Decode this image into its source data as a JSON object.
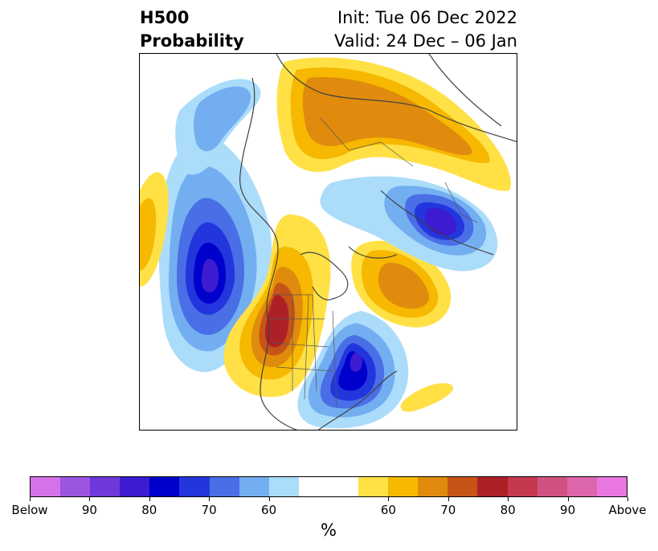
{
  "header": {
    "title_line1": "H500",
    "title_line2": "Probability",
    "init_text": "Init: Tue 06 Dec 2022",
    "valid_text": "Valid: 24 Dec – 06 Jan"
  },
  "colorbar": {
    "unit": "%",
    "colors": [
      "#d572e8",
      "#9c55e1",
      "#6e38da",
      "#3d1bd1",
      "#0000cc",
      "#2335dc",
      "#4a6ee6",
      "#73aef1",
      "#abdcfa",
      "#ffffff",
      "#ffffff",
      "#ffe146",
      "#f6b800",
      "#e08b0d",
      "#c55416",
      "#ad2126",
      "#c5394f",
      "#d15280",
      "#dd65aa",
      "#e878e0"
    ],
    "ticks": [
      "Below",
      "90",
      "80",
      "70",
      "60",
      "60",
      "70",
      "80",
      "90",
      "Above"
    ]
  },
  "map": {
    "legend_palette": {
      "below_60": "#abdcfa",
      "below_65": "#73aef1",
      "below_70": "#4a6ee6",
      "below_75": "#2335dc",
      "below_80": "#0000cc",
      "below_85": "#3d1bd1",
      "above_60": "#ffe146",
      "above_65": "#f6b800",
      "above_70": "#e08b0d",
      "above_75": "#c55416",
      "above_80": "#ad2126"
    }
  }
}
